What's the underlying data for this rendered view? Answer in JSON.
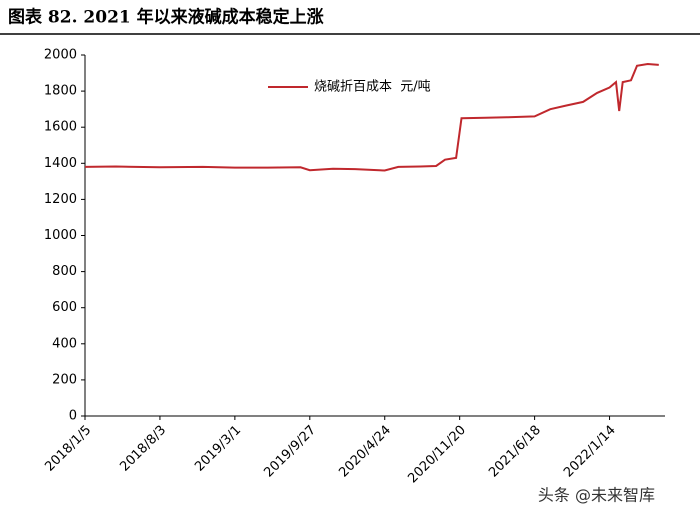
{
  "chart_data": {
    "type": "line",
    "title": "图表 82. 2021 年以来液碱成本稳定上涨",
    "watermark": "头条 @未来智库",
    "x": [
      "2018/1/5",
      "2018/4/1",
      "2018/8/3",
      "2018/12/1",
      "2019/3/1",
      "2019/6/1",
      "2019/9/1",
      "2019/9/27",
      "2019/12/1",
      "2020/2/1",
      "2020/4/24",
      "2020/6/1",
      "2020/8/1",
      "2020/9/15",
      "2020/10/10",
      "2020/11/10",
      "2020/11/25",
      "2021/2/1",
      "2021/4/1",
      "2021/6/18",
      "2021/8/1",
      "2021/9/15",
      "2021/11/1",
      "2021/12/10",
      "2022/1/14",
      "2022/2/1",
      "2022/2/10",
      "2022/2/20",
      "2022/3/15",
      "2022/4/1",
      "2022/5/1",
      "2022/6/1"
    ],
    "series": [
      {
        "name": "烧碱折百成本  元/吨",
        "color": "#c0282d",
        "values": [
          1380,
          1382,
          1378,
          1380,
          1376,
          1376,
          1378,
          1362,
          1370,
          1368,
          1360,
          1380,
          1382,
          1385,
          1420,
          1430,
          1650,
          1652,
          1655,
          1660,
          1700,
          1720,
          1740,
          1790,
          1820,
          1850,
          1690,
          1850,
          1860,
          1940,
          1950,
          1945
        ]
      }
    ],
    "xlim": [
      "2018/1/5",
      "2022/6/10"
    ],
    "xticks": [
      "2018/1/5",
      "2018/8/3",
      "2019/3/1",
      "2019/9/27",
      "2020/4/24",
      "2020/11/20",
      "2021/6/18",
      "2022/1/14"
    ],
    "ylim": [
      0,
      2000
    ],
    "yticks": [
      0,
      200,
      400,
      600,
      800,
      1000,
      1200,
      1400,
      1600,
      1800,
      2000
    ]
  }
}
